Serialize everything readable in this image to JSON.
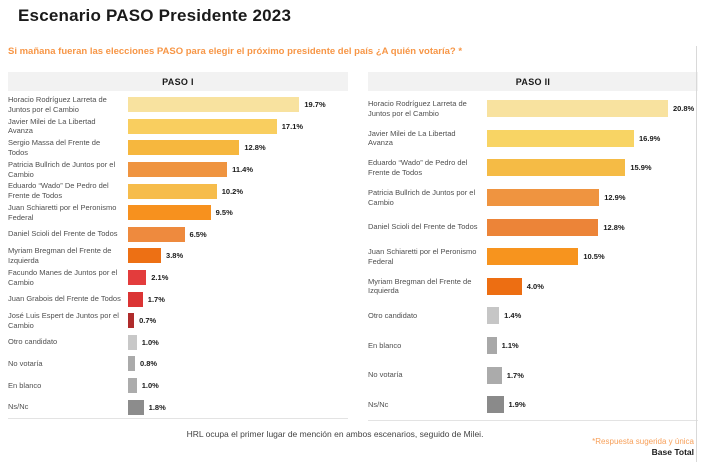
{
  "page": {
    "title": "Escenario PASO Presidente 2023",
    "subtitle": "Si mañana fueran las elecciones PASO para elegir el próximo presidente del país ¿A quién votaría? *",
    "footer_note": "HRL ocupa el primer lugar de mención en ambos escenarios, seguido de Milei.",
    "footnote_right": "*Respuesta sugerida y única",
    "base_label": "Base Total"
  },
  "colors": {
    "accent_orange": "#F79646",
    "header_bg": "#F2F2F2",
    "label_gray": "#4F4F4F",
    "border_gray": "#D9D9D9"
  },
  "chart_data": [
    {
      "type": "bar",
      "orientation": "horizontal",
      "title": "PASO I",
      "xlim": [
        0,
        22
      ],
      "grid": false,
      "legend": false,
      "categories": [
        "Horacio Rodríguez Larreta de Juntos por el Cambio",
        "Javier Milei de La Libertad Avanza",
        "Sergio Massa del Frente de Todos",
        "Patricia Bullrich de Juntos por el Cambio",
        "Eduardo “Wado” De Pedro del Frente de Todos",
        "Juan Schiaretti por el Peronismo Federal",
        "Daniel Scioli del Frente de Todos",
        "Myriam Bregman del Frente de Izquierda",
        "Facundo Manes de Juntos por el Cambio",
        "Juan Grabois del Frente de Todos",
        "José Luis Espert de Juntos por el Cambio",
        "Otro candidato",
        "No votaría",
        "En blanco",
        "Ns/Nc"
      ],
      "values": [
        19.7,
        17.1,
        12.8,
        11.4,
        10.2,
        9.5,
        6.5,
        3.8,
        2.1,
        1.7,
        0.7,
        1.0,
        0.8,
        1.0,
        1.8
      ],
      "value_labels": [
        "19.7%",
        "17.1%",
        "12.8%",
        "11.4%",
        "10.2%",
        "9.5%",
        "6.5%",
        "3.8%",
        "2.1%",
        "1.7%",
        "0.7%",
        "1.0%",
        "0.8%",
        "1.0%",
        "1.8%"
      ],
      "bar_colors": [
        "#F8E29F",
        "#F9CE5F",
        "#F6B73E",
        "#EF9440",
        "#F6BC4B",
        "#F7911E",
        "#EE8A3E",
        "#ED7014",
        "#E33C3C",
        "#DB3434",
        "#AF2B2B",
        "#C8C8C8",
        "#AAAAAA",
        "#ACACAC",
        "#8C8C8C"
      ]
    },
    {
      "type": "bar",
      "orientation": "horizontal",
      "title": "PASO II",
      "xlim": [
        0,
        22
      ],
      "grid": false,
      "legend": false,
      "categories": [
        "Horacio Rodríguez Larreta de Juntos por el Cambio",
        "Javier Milei de La Libertad Avanza",
        "Eduardo “Wado” de Pedro del Frente de Todos",
        "Patricia Bullrich de Juntos por el Cambio",
        "Daniel Scioli del Frente de Todos",
        "Juan Schiaretti por el Peronismo Federal",
        "Myriam Bregman del Frente de Izquierda",
        "Otro candidato",
        "En blanco",
        "No votaría",
        "Ns/Nc"
      ],
      "values": [
        20.8,
        16.9,
        15.9,
        12.9,
        12.8,
        10.5,
        4.0,
        1.4,
        1.1,
        1.7,
        1.9
      ],
      "value_labels": [
        "20.8%",
        "16.9%",
        "15.9%",
        "12.9%",
        "12.8%",
        "10.5%",
        "4.0%",
        "1.4%",
        "1.1%",
        "1.7%",
        "1.9%"
      ],
      "bar_colors": [
        "#F8E29F",
        "#F8D464",
        "#F5BB45",
        "#EF9440",
        "#EC8438",
        "#F7941E",
        "#ED6E12",
        "#C6C6C6",
        "#A8A8A8",
        "#ABABAB",
        "#8A8A8A"
      ]
    }
  ]
}
